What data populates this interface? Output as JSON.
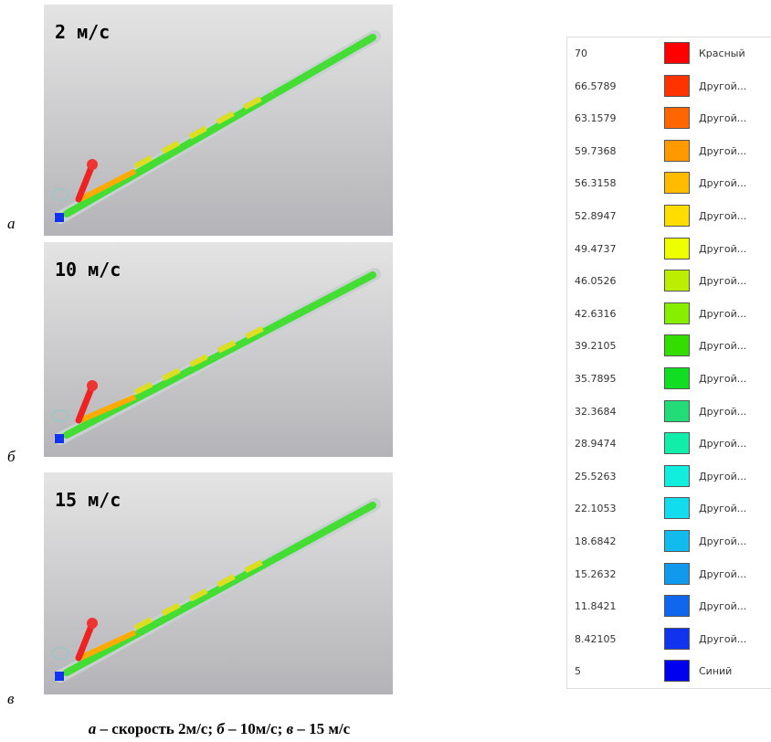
{
  "panels": [
    {
      "letter": "а",
      "label": "2 м/с"
    },
    {
      "letter": "б",
      "label": "10 м/с"
    },
    {
      "letter": "в",
      "label": "15 м/с"
    }
  ],
  "caption": [
    "а",
    " – скорость 2м/с; ",
    "б",
    " – 10м/с; ",
    "в",
    " – 15 м/с"
  ],
  "legend": {
    "rows": [
      {
        "value": "70",
        "color": "#ff0000",
        "name": "Красный"
      },
      {
        "value": "66.5789",
        "color": "#ff3300",
        "name": "Другой..."
      },
      {
        "value": "63.1579",
        "color": "#ff6600",
        "name": "Другой..."
      },
      {
        "value": "59.7368",
        "color": "#ff9900",
        "name": "Другой..."
      },
      {
        "value": "56.3158",
        "color": "#ffbb00",
        "name": "Другой..."
      },
      {
        "value": "52.8947",
        "color": "#ffdd00",
        "name": "Другой..."
      },
      {
        "value": "49.4737",
        "color": "#eeff00",
        "name": "Другой..."
      },
      {
        "value": "46.0526",
        "color": "#bbee00",
        "name": "Другой..."
      },
      {
        "value": "42.6316",
        "color": "#88ee00",
        "name": "Другой..."
      },
      {
        "value": "39.2105",
        "color": "#33dd00",
        "name": "Другой..."
      },
      {
        "value": "35.7895",
        "color": "#11dd22",
        "name": "Другой..."
      },
      {
        "value": "32.3684",
        "color": "#22dd77",
        "name": "Другой..."
      },
      {
        "value": "28.9474",
        "color": "#11eeaa",
        "name": "Другой..."
      },
      {
        "value": "25.5263",
        "color": "#11eedd",
        "name": "Другой..."
      },
      {
        "value": "22.1053",
        "color": "#11ddee",
        "name": "Другой..."
      },
      {
        "value": "18.6842",
        "color": "#11bbee",
        "name": "Другой..."
      },
      {
        "value": "15.2632",
        "color": "#1199ee",
        "name": "Другой..."
      },
      {
        "value": "11.8421",
        "color": "#1166ee",
        "name": "Другой..."
      },
      {
        "value": "8.42105",
        "color": "#1133ee",
        "name": "Другой..."
      },
      {
        "value": "5",
        "color": "#0000ee",
        "name": "Синий"
      }
    ]
  }
}
